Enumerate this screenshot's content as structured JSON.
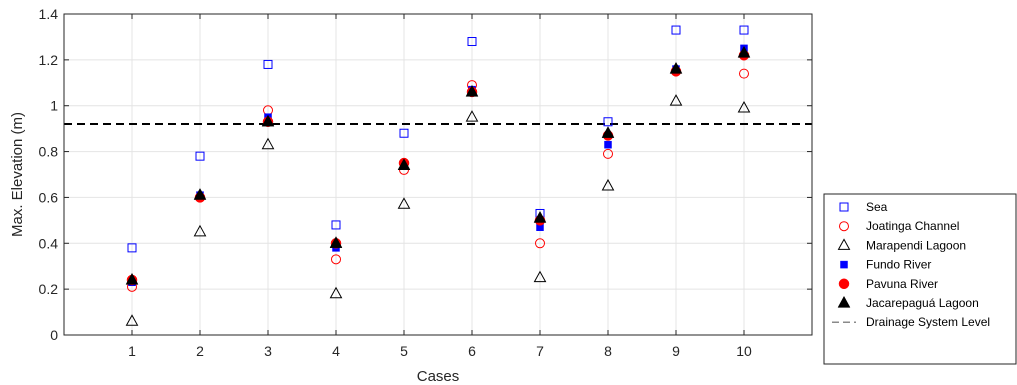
{
  "chart_data": {
    "type": "scatter",
    "title": "",
    "xlabel": "Cases",
    "ylabel": "Max. Elevation (m)",
    "categories": [
      1,
      2,
      3,
      4,
      5,
      6,
      7,
      8,
      9,
      10
    ],
    "xlim": [
      0,
      11
    ],
    "ylim": [
      0,
      1.4
    ],
    "xticks": [
      "1",
      "2",
      "3",
      "4",
      "5",
      "6",
      "7",
      "8",
      "9",
      "10"
    ],
    "yticks": [
      "0",
      "0.2",
      "0.4",
      "0.6",
      "0.8",
      "1",
      "1.2",
      "1.4"
    ],
    "grid": true,
    "legend_position": "outside-right-bottom",
    "series": [
      {
        "name": "Sea",
        "marker": "square-open",
        "color": "#0000ff",
        "values": [
          0.38,
          0.78,
          1.18,
          0.48,
          0.88,
          1.28,
          0.53,
          0.93,
          1.33,
          1.33
        ]
      },
      {
        "name": "Joatinga Channel",
        "marker": "circle-open",
        "color": "#ff0000",
        "values": [
          0.21,
          0.6,
          0.98,
          0.33,
          0.72,
          1.09,
          0.4,
          0.79,
          1.15,
          1.14
        ]
      },
      {
        "name": "Marapendi Lagoon",
        "marker": "triangle-open",
        "color": "#000000",
        "values": [
          0.06,
          0.45,
          0.83,
          0.18,
          0.57,
          0.95,
          0.25,
          0.65,
          1.02,
          0.99
        ]
      },
      {
        "name": "Fundo River",
        "marker": "square-filled",
        "color": "#0000ff",
        "values": [
          0.23,
          0.61,
          0.95,
          0.38,
          0.74,
          1.07,
          0.47,
          0.83,
          1.16,
          1.25
        ]
      },
      {
        "name": "Pavuna River",
        "marker": "circle-filled",
        "color": "#ff0000",
        "values": [
          0.24,
          0.6,
          0.93,
          0.4,
          0.75,
          1.06,
          0.5,
          0.87,
          1.15,
          1.22
        ]
      },
      {
        "name": "Jacarepaguá Lagoon",
        "marker": "triangle-filled",
        "color": "#000000",
        "values": [
          0.24,
          0.61,
          0.93,
          0.4,
          0.74,
          1.06,
          0.51,
          0.88,
          1.16,
          1.23
        ]
      }
    ],
    "reference_line": {
      "name": "Drainage System Level",
      "value": 0.92,
      "style": "dashed",
      "color": "#000000"
    }
  }
}
